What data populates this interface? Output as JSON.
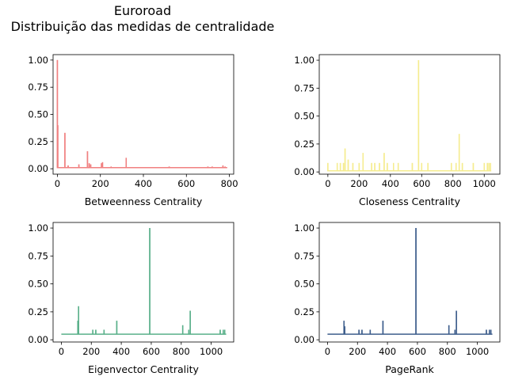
{
  "figure": {
    "title_line1": "Euroroad",
    "title_line2": "Distribuição das medidas de centralidade"
  },
  "chart_data": [
    {
      "type": "line",
      "xlabel": "Betweenness Centrality",
      "ylabel": "",
      "color": "#f08080",
      "xlim": [
        -20,
        820
      ],
      "ylim": [
        -0.05,
        1.05
      ],
      "xticks": [
        0,
        200,
        400,
        600,
        800
      ],
      "yticks": [
        0.0,
        0.25,
        0.5,
        0.75,
        1.0
      ],
      "ytick_labels": [
        "0.00",
        "0.25",
        "0.50",
        "0.75",
        "1.00"
      ],
      "baseline": 0.01,
      "spikes": [
        [
          0,
          1.0
        ],
        [
          2,
          0.4
        ],
        [
          35,
          0.33
        ],
        [
          50,
          0.03
        ],
        [
          100,
          0.04
        ],
        [
          140,
          0.16
        ],
        [
          148,
          0.05
        ],
        [
          155,
          0.04
        ],
        [
          205,
          0.05
        ],
        [
          210,
          0.06
        ],
        [
          250,
          0.02
        ],
        [
          320,
          0.1
        ],
        [
          520,
          0.02
        ],
        [
          700,
          0.02
        ],
        [
          720,
          0.02
        ],
        [
          770,
          0.03
        ],
        [
          780,
          0.02
        ]
      ],
      "x_end": 790,
      "grid": false
    },
    {
      "type": "line",
      "xlabel": "Closeness Centrality",
      "ylabel": "",
      "color": "#f5ec8f",
      "xlim": [
        -55,
        1100
      ],
      "ylim": [
        -0.02,
        1.05
      ],
      "xticks": [
        0,
        200,
        400,
        600,
        800,
        1000
      ],
      "yticks": [
        0.0,
        0.25,
        0.5,
        0.75,
        1.0
      ],
      "ytick_labels": [
        "0.00",
        "0.25",
        "0.50",
        "0.75",
        "1.00"
      ],
      "baseline": 0.01,
      "spikes": [
        [
          0,
          0.08
        ],
        [
          60,
          0.08
        ],
        [
          80,
          0.08
        ],
        [
          100,
          0.08
        ],
        [
          110,
          0.21
        ],
        [
          130,
          0.11
        ],
        [
          160,
          0.08
        ],
        [
          200,
          0.08
        ],
        [
          225,
          0.17
        ],
        [
          280,
          0.08
        ],
        [
          300,
          0.08
        ],
        [
          330,
          0.08
        ],
        [
          360,
          0.17
        ],
        [
          380,
          0.08
        ],
        [
          420,
          0.08
        ],
        [
          450,
          0.08
        ],
        [
          540,
          0.08
        ],
        [
          580,
          1.0
        ],
        [
          600,
          0.08
        ],
        [
          640,
          0.08
        ],
        [
          790,
          0.08
        ],
        [
          820,
          0.08
        ],
        [
          840,
          0.34
        ],
        [
          860,
          0.08
        ],
        [
          930,
          0.08
        ],
        [
          1000,
          0.08
        ],
        [
          1020,
          0.08
        ],
        [
          1030,
          0.08
        ],
        [
          1040,
          0.08
        ]
      ],
      "x_end": 1045,
      "grid": false
    },
    {
      "type": "line",
      "xlabel": "Eigenvector Centrality",
      "ylabel": "",
      "color": "#5ab08a",
      "xlim": [
        -55,
        1150
      ],
      "ylim": [
        -0.02,
        1.05
      ],
      "xticks": [
        0,
        200,
        400,
        600,
        800,
        1000
      ],
      "yticks": [
        0.0,
        0.25,
        0.5,
        0.75,
        1.0
      ],
      "ytick_labels": [
        "0.00",
        "0.25",
        "0.50",
        "0.75",
        "1.00"
      ],
      "baseline": 0.05,
      "spikes": [
        [
          110,
          0.17
        ],
        [
          115,
          0.3
        ],
        [
          210,
          0.09
        ],
        [
          230,
          0.09
        ],
        [
          285,
          0.09
        ],
        [
          370,
          0.17
        ],
        [
          590,
          1.0
        ],
        [
          810,
          0.13
        ],
        [
          850,
          0.09
        ],
        [
          860,
          0.26
        ],
        [
          1060,
          0.09
        ],
        [
          1080,
          0.09
        ],
        [
          1090,
          0.09
        ]
      ],
      "x_end": 1100,
      "grid": false
    },
    {
      "type": "line",
      "xlabel": "PageRank",
      "ylabel": "",
      "color": "#3e5e8c",
      "xlim": [
        -55,
        1150
      ],
      "ylim": [
        -0.02,
        1.05
      ],
      "xticks": [
        0,
        200,
        400,
        600,
        800,
        1000
      ],
      "yticks": [
        0.0,
        0.25,
        0.5,
        0.75,
        1.0
      ],
      "ytick_labels": [
        "0.00",
        "0.25",
        "0.50",
        "0.75",
        "1.00"
      ],
      "baseline": 0.05,
      "spikes": [
        [
          110,
          0.17
        ],
        [
          115,
          0.12
        ],
        [
          210,
          0.09
        ],
        [
          230,
          0.09
        ],
        [
          285,
          0.09
        ],
        [
          370,
          0.17
        ],
        [
          590,
          1.0
        ],
        [
          810,
          0.13
        ],
        [
          850,
          0.09
        ],
        [
          860,
          0.26
        ],
        [
          1060,
          0.09
        ],
        [
          1080,
          0.09
        ],
        [
          1090,
          0.09
        ]
      ],
      "x_end": 1100,
      "grid": false
    }
  ]
}
